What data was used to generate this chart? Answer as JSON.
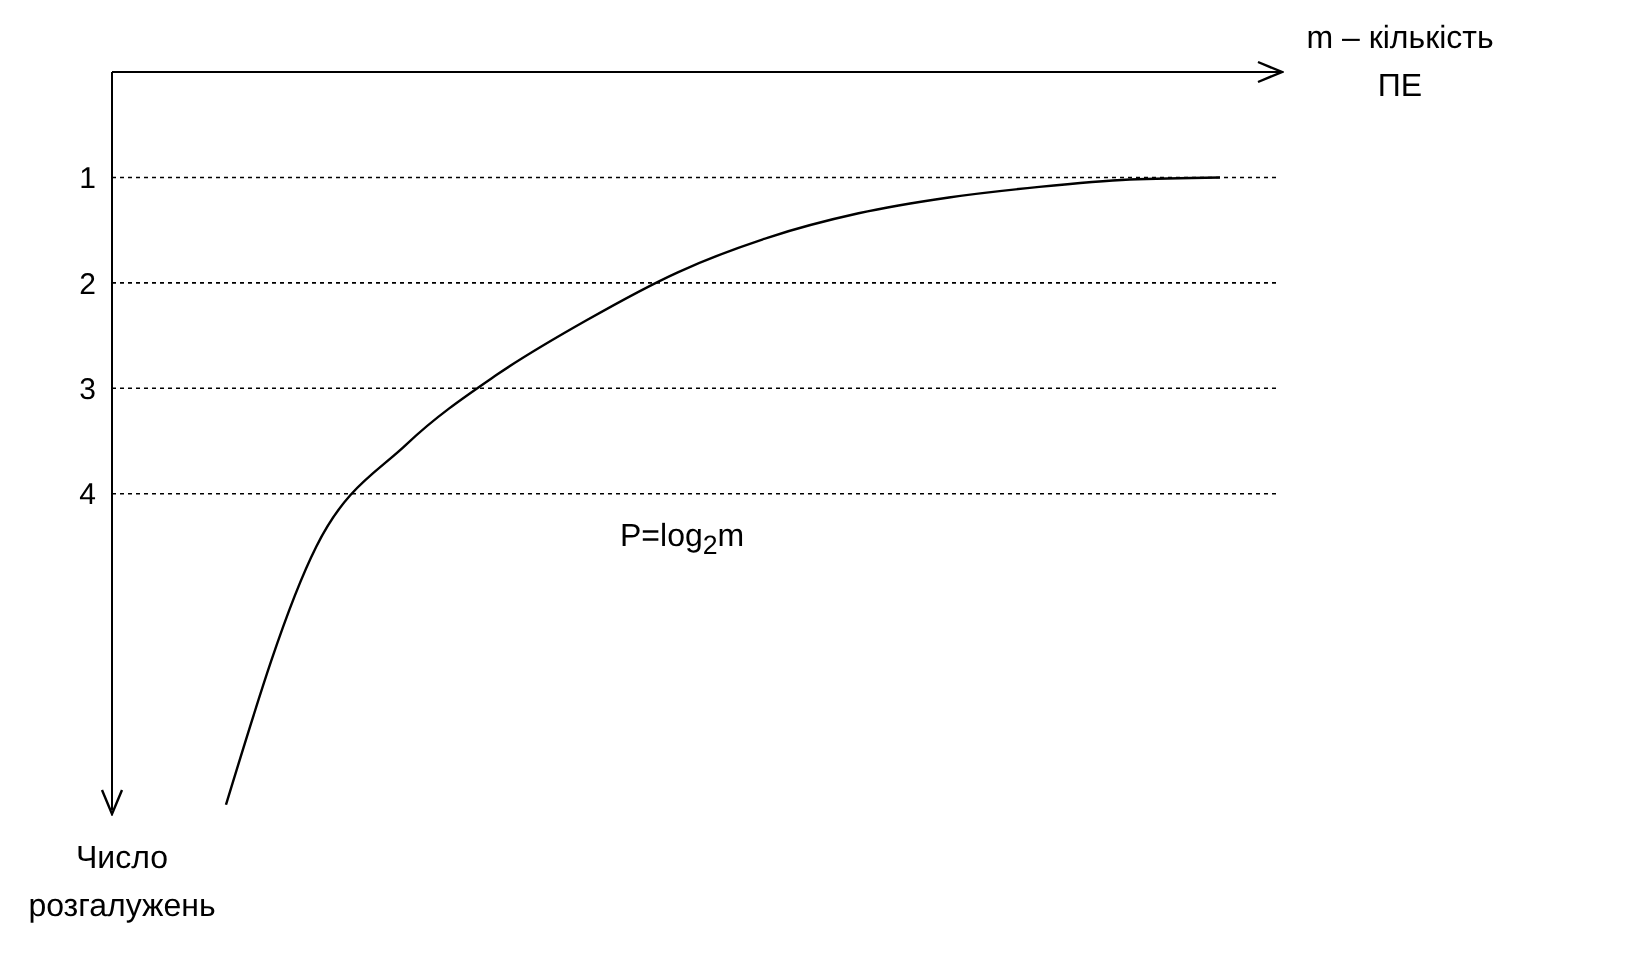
{
  "chart_data": {
    "type": "line",
    "xlabel": "m – кількість ПЕ",
    "ylabel": "Число розгалужень",
    "annotations": [
      "P=log$_{2}$m"
    ],
    "categories": [
      null,
      null,
      null,
      null,
      null,
      null,
      null,
      null,
      null,
      null,
      null,
      null
    ],
    "series": [
      {
        "color": "#000000",
        "values": [
          6.95,
          4.5,
          3.53,
          2.87,
          2.35,
          1.9,
          1.57,
          1.34,
          1.19,
          1.09,
          1.02,
          1.0
        ]
      }
    ],
    "ylim": [
      7,
      0
    ],
    "yticks": [
      1,
      2,
      3,
      4
    ],
    "grid": "y",
    "marker": "none",
    "line_style": "solid",
    "tick_labels": "y"
  }
}
